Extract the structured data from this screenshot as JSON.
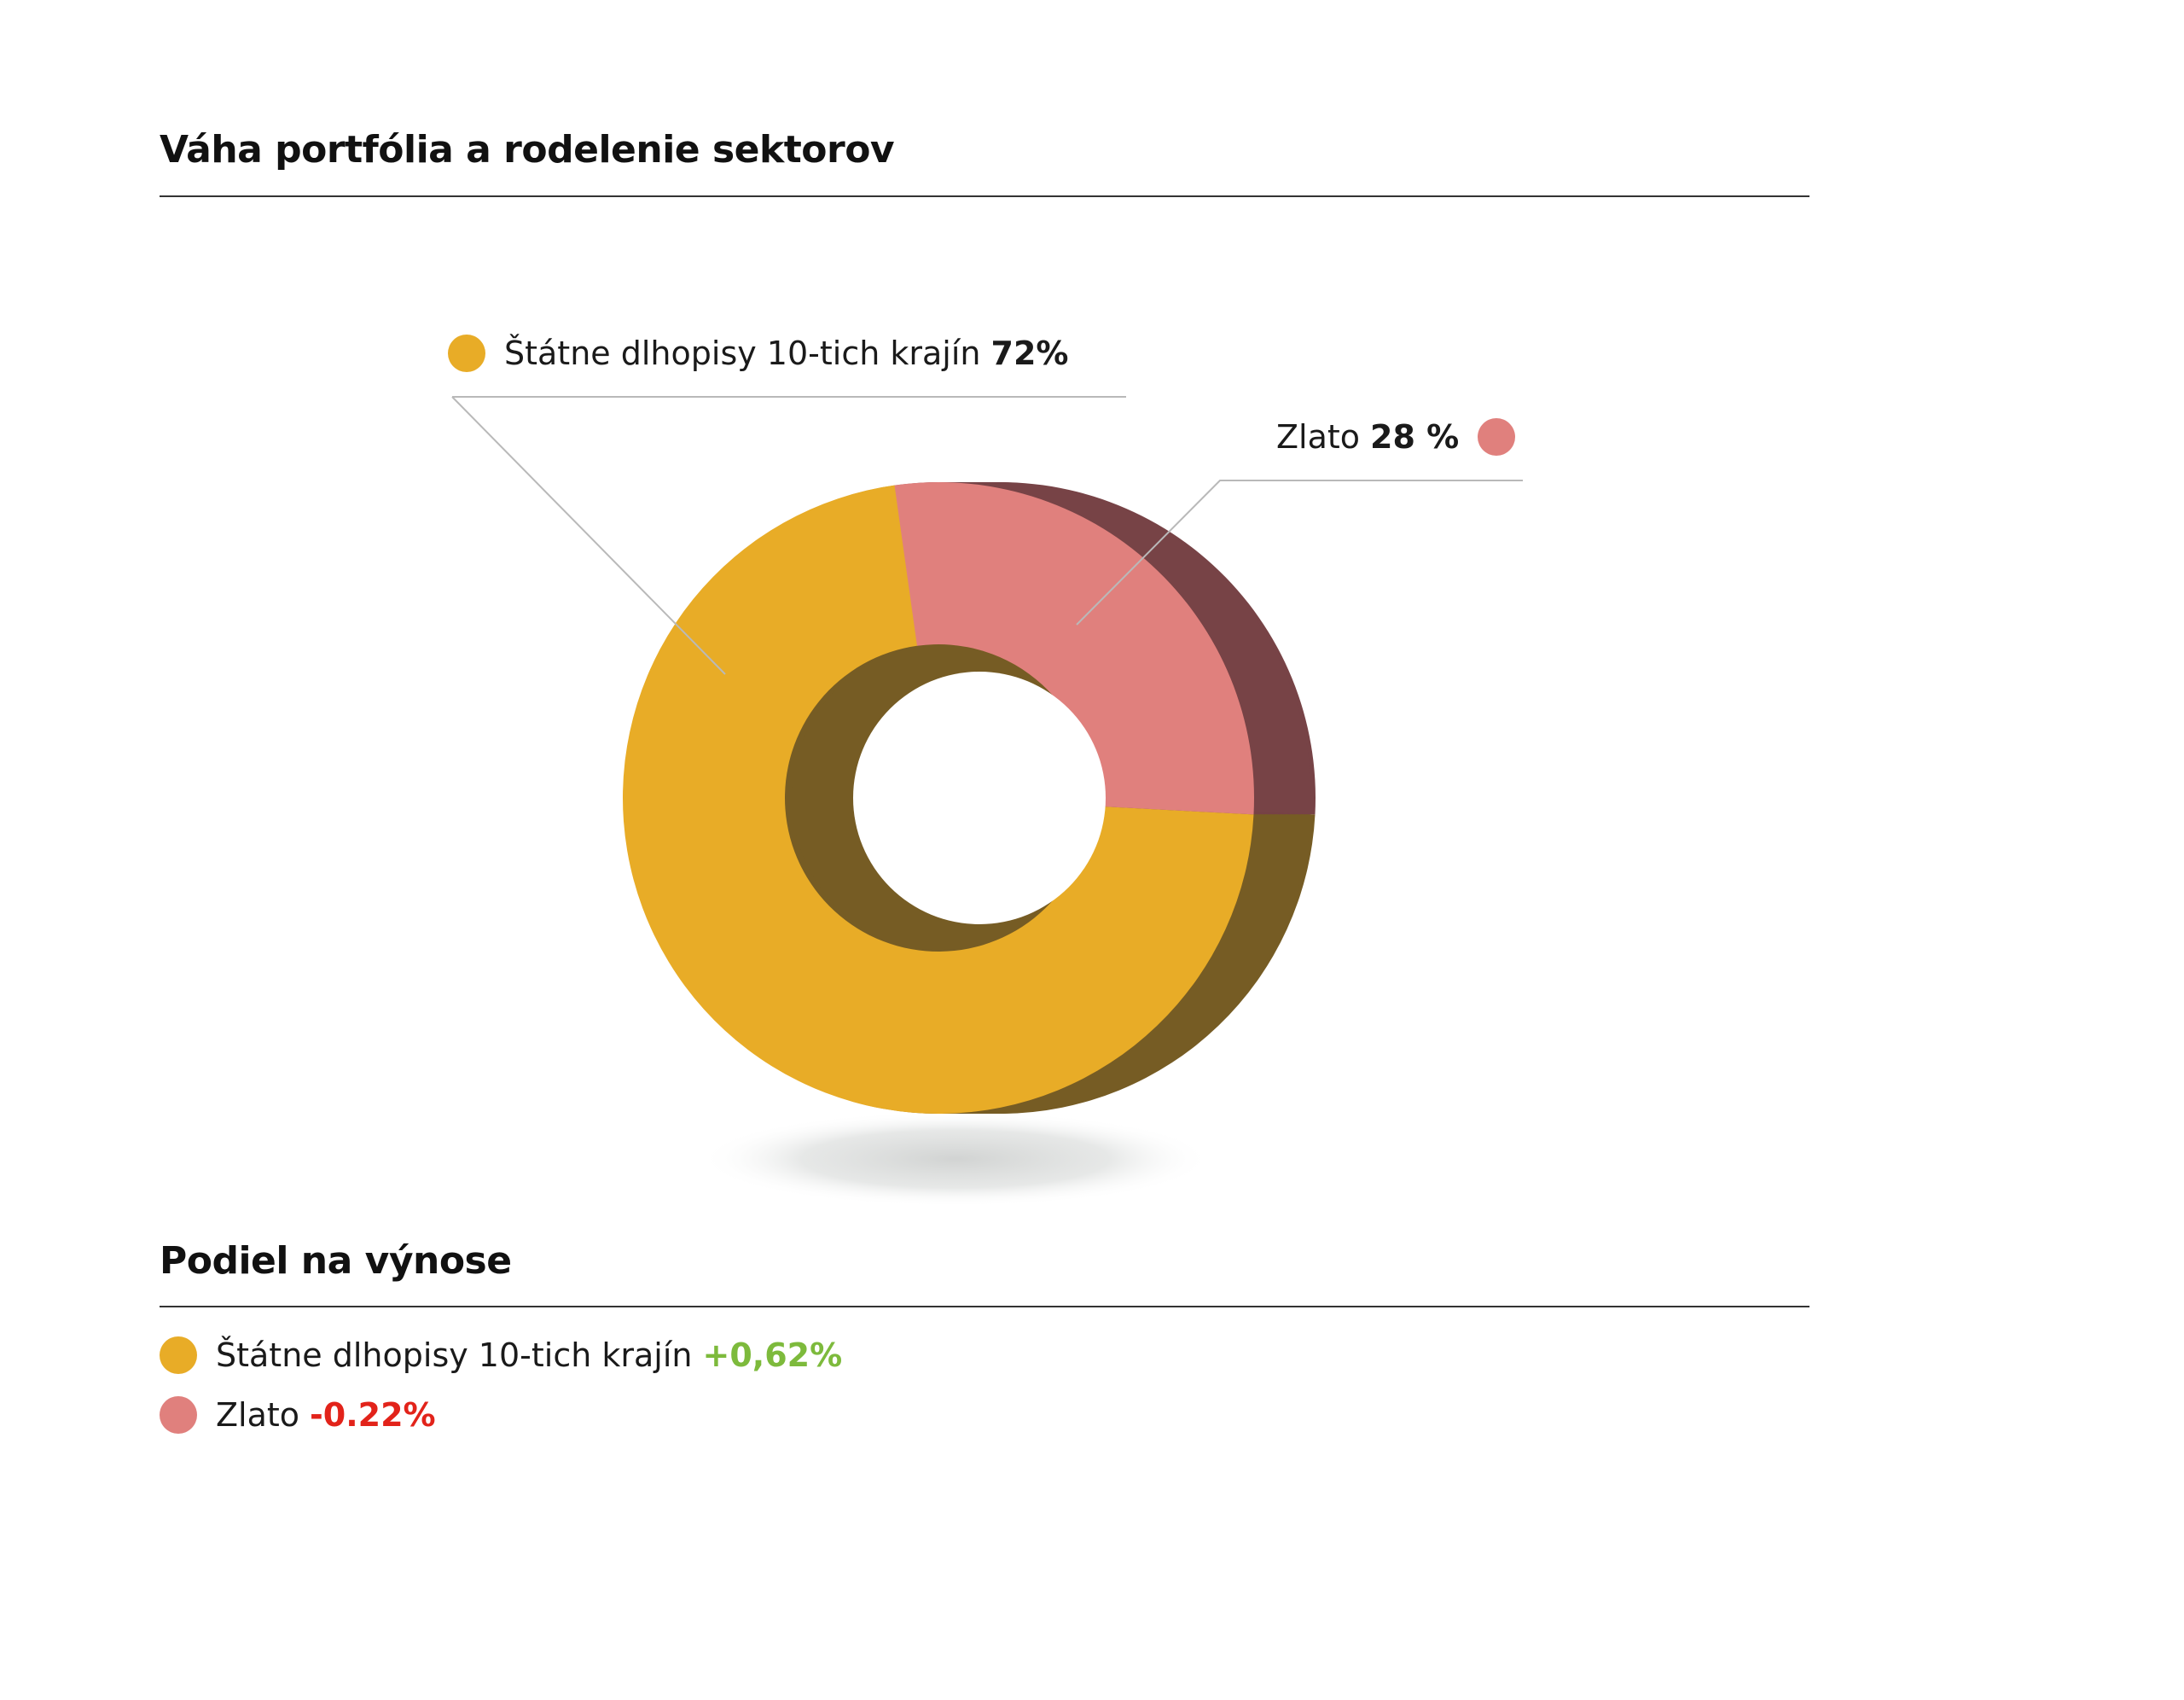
{
  "sections": {
    "weights_title": "Váha portfólia a rodelenie sektorov",
    "returns_title": "Podiel na výnose"
  },
  "colors": {
    "gold": "#E8AC27",
    "gold_side": "#765C24",
    "pink": "#E0807D",
    "pink_side": "#774346",
    "green": "#7DBA3C",
    "red": "#E2231A"
  },
  "chart_data": {
    "type": "pie",
    "style": "3d-donut",
    "title": "Váha portfólia a rodelenie sektorov",
    "series": [
      {
        "name": "Štátne dlhopisy 10-tich krajín",
        "value": 72,
        "value_label": "72%",
        "color": "#E8AC27"
      },
      {
        "name": "Zlato",
        "value": 28,
        "value_label": "28 %",
        "color": "#E0807D"
      }
    ]
  },
  "returns": [
    {
      "name": "Štátne dlhopisy 10-tich krajín",
      "value": "+0,62%",
      "color": "#E8AC27",
      "value_color": "#7DBA3C"
    },
    {
      "name": "Zlato",
      "value": "-0.22%",
      "color": "#E0807D",
      "value_color": "#E2231A"
    }
  ]
}
